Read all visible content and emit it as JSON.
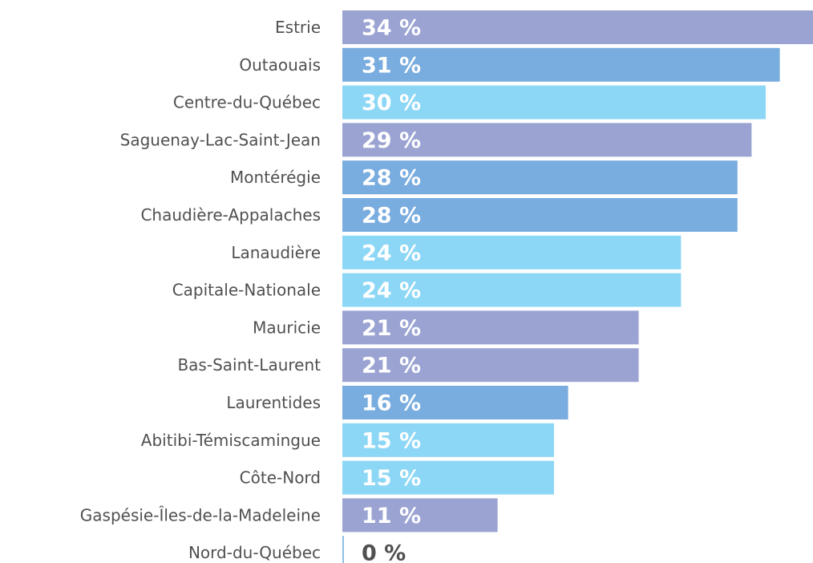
{
  "chart_data": {
    "type": "bar",
    "categories": [
      "Estrie",
      "Outaouais",
      "Centre-du-Québec",
      "Saguenay-Lac-Saint-Jean",
      "Montérégie",
      "Chaudière-Appalaches",
      "Lanaudière",
      "Capitale-Nationale",
      "Mauricie",
      "Bas-Saint-Laurent",
      "Laurentides",
      "Abitibi-Témiscamingue",
      "Côte-Nord",
      "Gaspésie-Îles-de-la-Madeleine",
      "Nord-du-Québec"
    ],
    "values": [
      34,
      31,
      30,
      29,
      28,
      28,
      24,
      24,
      21,
      21,
      16,
      15,
      15,
      11,
      0
    ],
    "value_labels": [
      "34 %",
      "31 %",
      "30 %",
      "29 %",
      "28 %",
      "28 %",
      "24 %",
      "24 %",
      "21 %",
      "21 %",
      "16 %",
      "15 %",
      "15 %",
      "11 %",
      "0 %"
    ],
    "colors": [
      "#9ba3d3",
      "#79acdf",
      "#8dd7f6",
      "#9ba3d3",
      "#79acdf",
      "#79acdf",
      "#8dd7f6",
      "#8dd7f6",
      "#9ba3d3",
      "#9ba3d3",
      "#79acdf",
      "#8dd7f6",
      "#8dd7f6",
      "#9ba3d3",
      "#8dc0e6"
    ]
  }
}
